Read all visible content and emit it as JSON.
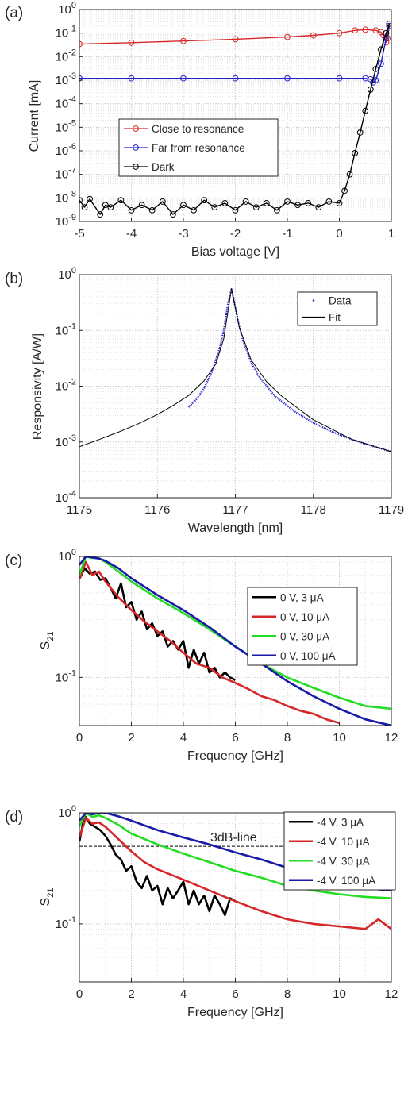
{
  "chart_data": [
    {
      "type": "scatter",
      "panel_label": "(a)",
      "xlabel": "Bias voltage [V]",
      "ylabel": "Current [mA]",
      "xlim": [
        -5,
        1
      ],
      "ylim": [
        1e-09,
        1
      ],
      "yscale": "log",
      "grid": "on (major and minor)",
      "legend": "center-left",
      "x_ticks": [
        "-5",
        "-4",
        "-3",
        "-2",
        "-1",
        "0",
        "1"
      ],
      "y_ticks": [
        "10^-9",
        "10^-8",
        "10^-7",
        "10^-6",
        "10^-5",
        "10^-4",
        "10^-3",
        "10^-2",
        "10^-1",
        "10^0"
      ],
      "series": [
        {
          "name": "Close to resonance",
          "color": "#d62728",
          "x": [
            -5,
            -4,
            -3,
            -2,
            -1,
            -0.5,
            0,
            0.3,
            0.5,
            0.7,
            0.8,
            0.85,
            0.9,
            0.93,
            0.96
          ],
          "y": [
            0.034,
            0.039,
            0.046,
            0.055,
            0.068,
            0.08,
            0.1,
            0.13,
            0.14,
            0.13,
            0.11,
            0.08,
            0.04,
            0.06,
            0.2
          ]
        },
        {
          "name": "Far from resonance",
          "color": "#2222cc",
          "x": [
            -5,
            -4,
            -3,
            -2,
            -1,
            0,
            0.5,
            0.6,
            0.65,
            0.7,
            0.8,
            0.9,
            0.96
          ],
          "y": [
            0.0012,
            0.0012,
            0.0012,
            0.0012,
            0.0012,
            0.0012,
            0.0012,
            0.0011,
            0.0008,
            0.001,
            0.005,
            0.06,
            0.2
          ]
        },
        {
          "name": "Dark",
          "color": "#000000",
          "x": [
            -5,
            -4.9,
            -4.8,
            -4.6,
            -4.5,
            -4.4,
            -4.2,
            -4,
            -3.8,
            -3.6,
            -3.4,
            -3.2,
            -3,
            -2.8,
            -2.6,
            -2.4,
            -2.2,
            -2,
            -1.8,
            -1.6,
            -1.4,
            -1.2,
            -1,
            -0.8,
            -0.6,
            -0.4,
            -0.2,
            0,
            0.1,
            0.2,
            0.3,
            0.4,
            0.5,
            0.6,
            0.7,
            0.8,
            0.9,
            0.96
          ],
          "y": [
            8e-09,
            4e-09,
            9e-09,
            2e-09,
            5e-09,
            4e-09,
            8e-09,
            3e-09,
            5e-09,
            3e-09,
            7e-09,
            2e-09,
            5e-09,
            3e-09,
            8e-09,
            4e-09,
            6e-09,
            3e-09,
            7e-09,
            4e-09,
            6e-09,
            3e-09,
            7e-09,
            5e-09,
            6e-09,
            4e-09,
            7e-09,
            6e-09,
            2e-08,
            1e-07,
            8e-07,
            6e-06,
            5e-05,
            0.0004,
            0.003,
            0.02,
            0.1,
            0.25
          ]
        }
      ]
    },
    {
      "type": "scatter",
      "panel_label": "(b)",
      "xlabel": "Wavelength [nm]",
      "ylabel": "Responsivity [A/W]",
      "xlim": [
        1175,
        1179
      ],
      "ylim": [
        0.0001,
        1
      ],
      "yscale": "log",
      "grid": "on (major and minor)",
      "legend": "top-right",
      "x_ticks": [
        "1175",
        "1176",
        "1177",
        "1178",
        "1179"
      ],
      "y_ticks": [
        "10^-4",
        "10^-3",
        "10^-2",
        "10^-1",
        "10^0"
      ],
      "series": [
        {
          "name": "Data",
          "color": "#2222cc",
          "x": [
            1176.4,
            1176.5,
            1176.6,
            1176.7,
            1176.8,
            1176.85,
            1176.9,
            1176.95,
            1177.0,
            1177.05,
            1177.1,
            1177.2,
            1177.3,
            1177.5,
            1177.75,
            1178.0,
            1178.25,
            1178.5,
            1178.75,
            1179.0
          ],
          "y": [
            0.0042,
            0.0058,
            0.0092,
            0.018,
            0.048,
            0.1,
            0.28,
            0.55,
            0.26,
            0.12,
            0.065,
            0.027,
            0.015,
            0.0068,
            0.0036,
            0.0022,
            0.0015,
            0.0011,
            0.00085,
            0.00067
          ]
        },
        {
          "name": "Fit",
          "color": "#000000",
          "x": [
            1175.0,
            1175.25,
            1175.5,
            1175.75,
            1176.0,
            1176.2,
            1176.4,
            1176.6,
            1176.75,
            1176.85,
            1176.95,
            1177.05,
            1177.2,
            1177.4,
            1177.6,
            1178.0,
            1178.5,
            1179.0
          ],
          "y": [
            0.00082,
            0.0011,
            0.0015,
            0.0021,
            0.0031,
            0.0045,
            0.0068,
            0.0125,
            0.025,
            0.07,
            0.56,
            0.115,
            0.03,
            0.012,
            0.0065,
            0.0025,
            0.0011,
            0.00067
          ]
        }
      ]
    },
    {
      "type": "line",
      "panel_label": "(c)",
      "xlabel": "Frequency [GHz]",
      "ylabel": "S21",
      "xlim": [
        0,
        12
      ],
      "ylim": [
        0.04,
        1
      ],
      "yscale": "log",
      "grid": "on (major and minor)",
      "legend": "top-right",
      "x_ticks": [
        "0",
        "2",
        "4",
        "6",
        "8",
        "10",
        "12"
      ],
      "y_ticks": [
        "10^-1",
        "10^0"
      ],
      "series": [
        {
          "name": "0 V, 3 μA",
          "color": "#000000",
          "x": [
            0,
            0.2,
            0.4,
            0.6,
            0.8,
            1.0,
            1.2,
            1.4,
            1.6,
            1.8,
            2.0,
            2.2,
            2.4,
            2.6,
            2.8,
            3.0,
            3.2,
            3.4,
            3.6,
            3.8,
            4.0,
            4.2,
            4.4,
            4.6,
            4.8,
            5.0,
            5.2,
            5.4,
            5.6,
            5.8,
            6.0
          ],
          "y": [
            0.65,
            0.8,
            0.72,
            0.75,
            0.64,
            0.66,
            0.55,
            0.45,
            0.6,
            0.38,
            0.42,
            0.3,
            0.35,
            0.25,
            0.28,
            0.22,
            0.24,
            0.18,
            0.2,
            0.17,
            0.2,
            0.12,
            0.17,
            0.13,
            0.16,
            0.11,
            0.12,
            0.1,
            0.11,
            0.1,
            0.095
          ]
        },
        {
          "name": "0 V, 10 μA",
          "color": "#d62728",
          "x": [
            0,
            0.25,
            0.5,
            0.75,
            1.0,
            1.5,
            2.0,
            2.5,
            3.0,
            3.5,
            4.0,
            4.5,
            5.0,
            5.5,
            6.0,
            6.5,
            7.0,
            7.5,
            8.0,
            8.5,
            9.0,
            9.5,
            10.0
          ],
          "y": [
            0.65,
            0.9,
            0.7,
            0.75,
            0.62,
            0.46,
            0.36,
            0.29,
            0.24,
            0.2,
            0.16,
            0.13,
            0.12,
            0.1,
            0.09,
            0.08,
            0.07,
            0.065,
            0.058,
            0.053,
            0.05,
            0.045,
            0.042
          ]
        },
        {
          "name": "0 V, 30 μA",
          "color": "#22dd22",
          "x": [
            0,
            0.25,
            0.5,
            0.75,
            1.0,
            1.5,
            2.0,
            3.0,
            4.0,
            5.0,
            6.0,
            7.0,
            8.0,
            9.0,
            10.0,
            11.0,
            12.0
          ],
          "y": [
            0.7,
            1.0,
            0.97,
            0.97,
            0.9,
            0.75,
            0.62,
            0.45,
            0.34,
            0.25,
            0.18,
            0.13,
            0.1,
            0.082,
            0.068,
            0.058,
            0.055
          ]
        },
        {
          "name": "0 V, 100 μA",
          "color": "#1a1aa8",
          "x": [
            0,
            0.25,
            0.5,
            0.75,
            1.0,
            1.5,
            2.0,
            3.0,
            4.0,
            5.0,
            6.0,
            7.0,
            8.0,
            9.0,
            10.0,
            11.0,
            12.0
          ],
          "y": [
            0.85,
            1.0,
            0.98,
            0.96,
            0.92,
            0.8,
            0.66,
            0.48,
            0.36,
            0.26,
            0.18,
            0.13,
            0.093,
            0.07,
            0.055,
            0.045,
            0.04
          ]
        }
      ]
    },
    {
      "type": "line",
      "panel_label": "(d)",
      "xlabel": "Frequency [GHz]",
      "ylabel": "S21",
      "xlim": [
        0,
        12
      ],
      "ylim": [
        0.03,
        1
      ],
      "yscale": "log",
      "grid": "on (major and minor)",
      "legend": "top-right",
      "annotation": "3dB-line",
      "reference_line_y": 0.5,
      "x_ticks": [
        "0",
        "2",
        "4",
        "6",
        "8",
        "10",
        "12"
      ],
      "y_ticks": [
        "10^-1",
        "10^0"
      ],
      "series": [
        {
          "name": "-4 V, 3 μA",
          "color": "#000000",
          "x": [
            0,
            0.2,
            0.4,
            0.6,
            0.8,
            1.0,
            1.2,
            1.4,
            1.6,
            1.8,
            2.0,
            2.2,
            2.4,
            2.6,
            2.8,
            3.0,
            3.2,
            3.4,
            3.6,
            3.8,
            4.0,
            4.2,
            4.4,
            4.6,
            4.8,
            5.0,
            5.2,
            5.4,
            5.6,
            5.8,
            6.0
          ],
          "y": [
            0.55,
            0.95,
            0.8,
            0.75,
            0.7,
            0.62,
            0.52,
            0.42,
            0.38,
            0.3,
            0.33,
            0.24,
            0.21,
            0.27,
            0.2,
            0.22,
            0.15,
            0.21,
            0.17,
            0.2,
            0.24,
            0.15,
            0.2,
            0.15,
            0.18,
            0.13,
            0.18,
            0.15,
            0.12,
            0.17,
            0.16
          ]
        },
        {
          "name": "-4 V, 10 μA",
          "color": "#d62728",
          "x": [
            0,
            0.25,
            0.5,
            0.75,
            1.0,
            1.5,
            2.0,
            2.5,
            3.0,
            4.0,
            5.0,
            6.0,
            7.0,
            8.0,
            9.0,
            10.0,
            11.0,
            11.5,
            12.0
          ],
          "y": [
            0.6,
            0.9,
            0.8,
            0.82,
            0.75,
            0.58,
            0.45,
            0.36,
            0.31,
            0.25,
            0.2,
            0.16,
            0.13,
            0.11,
            0.1,
            0.095,
            0.09,
            0.11,
            0.09
          ]
        },
        {
          "name": "-4 V, 30 μA",
          "color": "#22dd22",
          "x": [
            0,
            0.25,
            0.5,
            0.75,
            1.0,
            1.5,
            2.0,
            3.0,
            4.0,
            5.0,
            6.0,
            7.0,
            8.0,
            9.0,
            10.0,
            11.0,
            12.0
          ],
          "y": [
            0.75,
            1.0,
            0.92,
            0.95,
            0.9,
            0.78,
            0.65,
            0.52,
            0.43,
            0.36,
            0.3,
            0.26,
            0.22,
            0.2,
            0.185,
            0.175,
            0.17
          ]
        },
        {
          "name": "-4 V, 100 μA",
          "color": "#1a1aa8",
          "x": [
            0,
            0.25,
            0.5,
            0.75,
            1.0,
            1.5,
            2.0,
            3.0,
            4.0,
            5.0,
            6.0,
            7.0,
            8.0,
            9.0,
            10.0,
            11.0,
            12.0
          ],
          "y": [
            0.85,
            1.0,
            0.97,
            1.0,
            1.0,
            0.93,
            0.85,
            0.7,
            0.6,
            0.52,
            0.44,
            0.38,
            0.32,
            0.27,
            0.23,
            0.21,
            0.2
          ]
        }
      ]
    }
  ]
}
